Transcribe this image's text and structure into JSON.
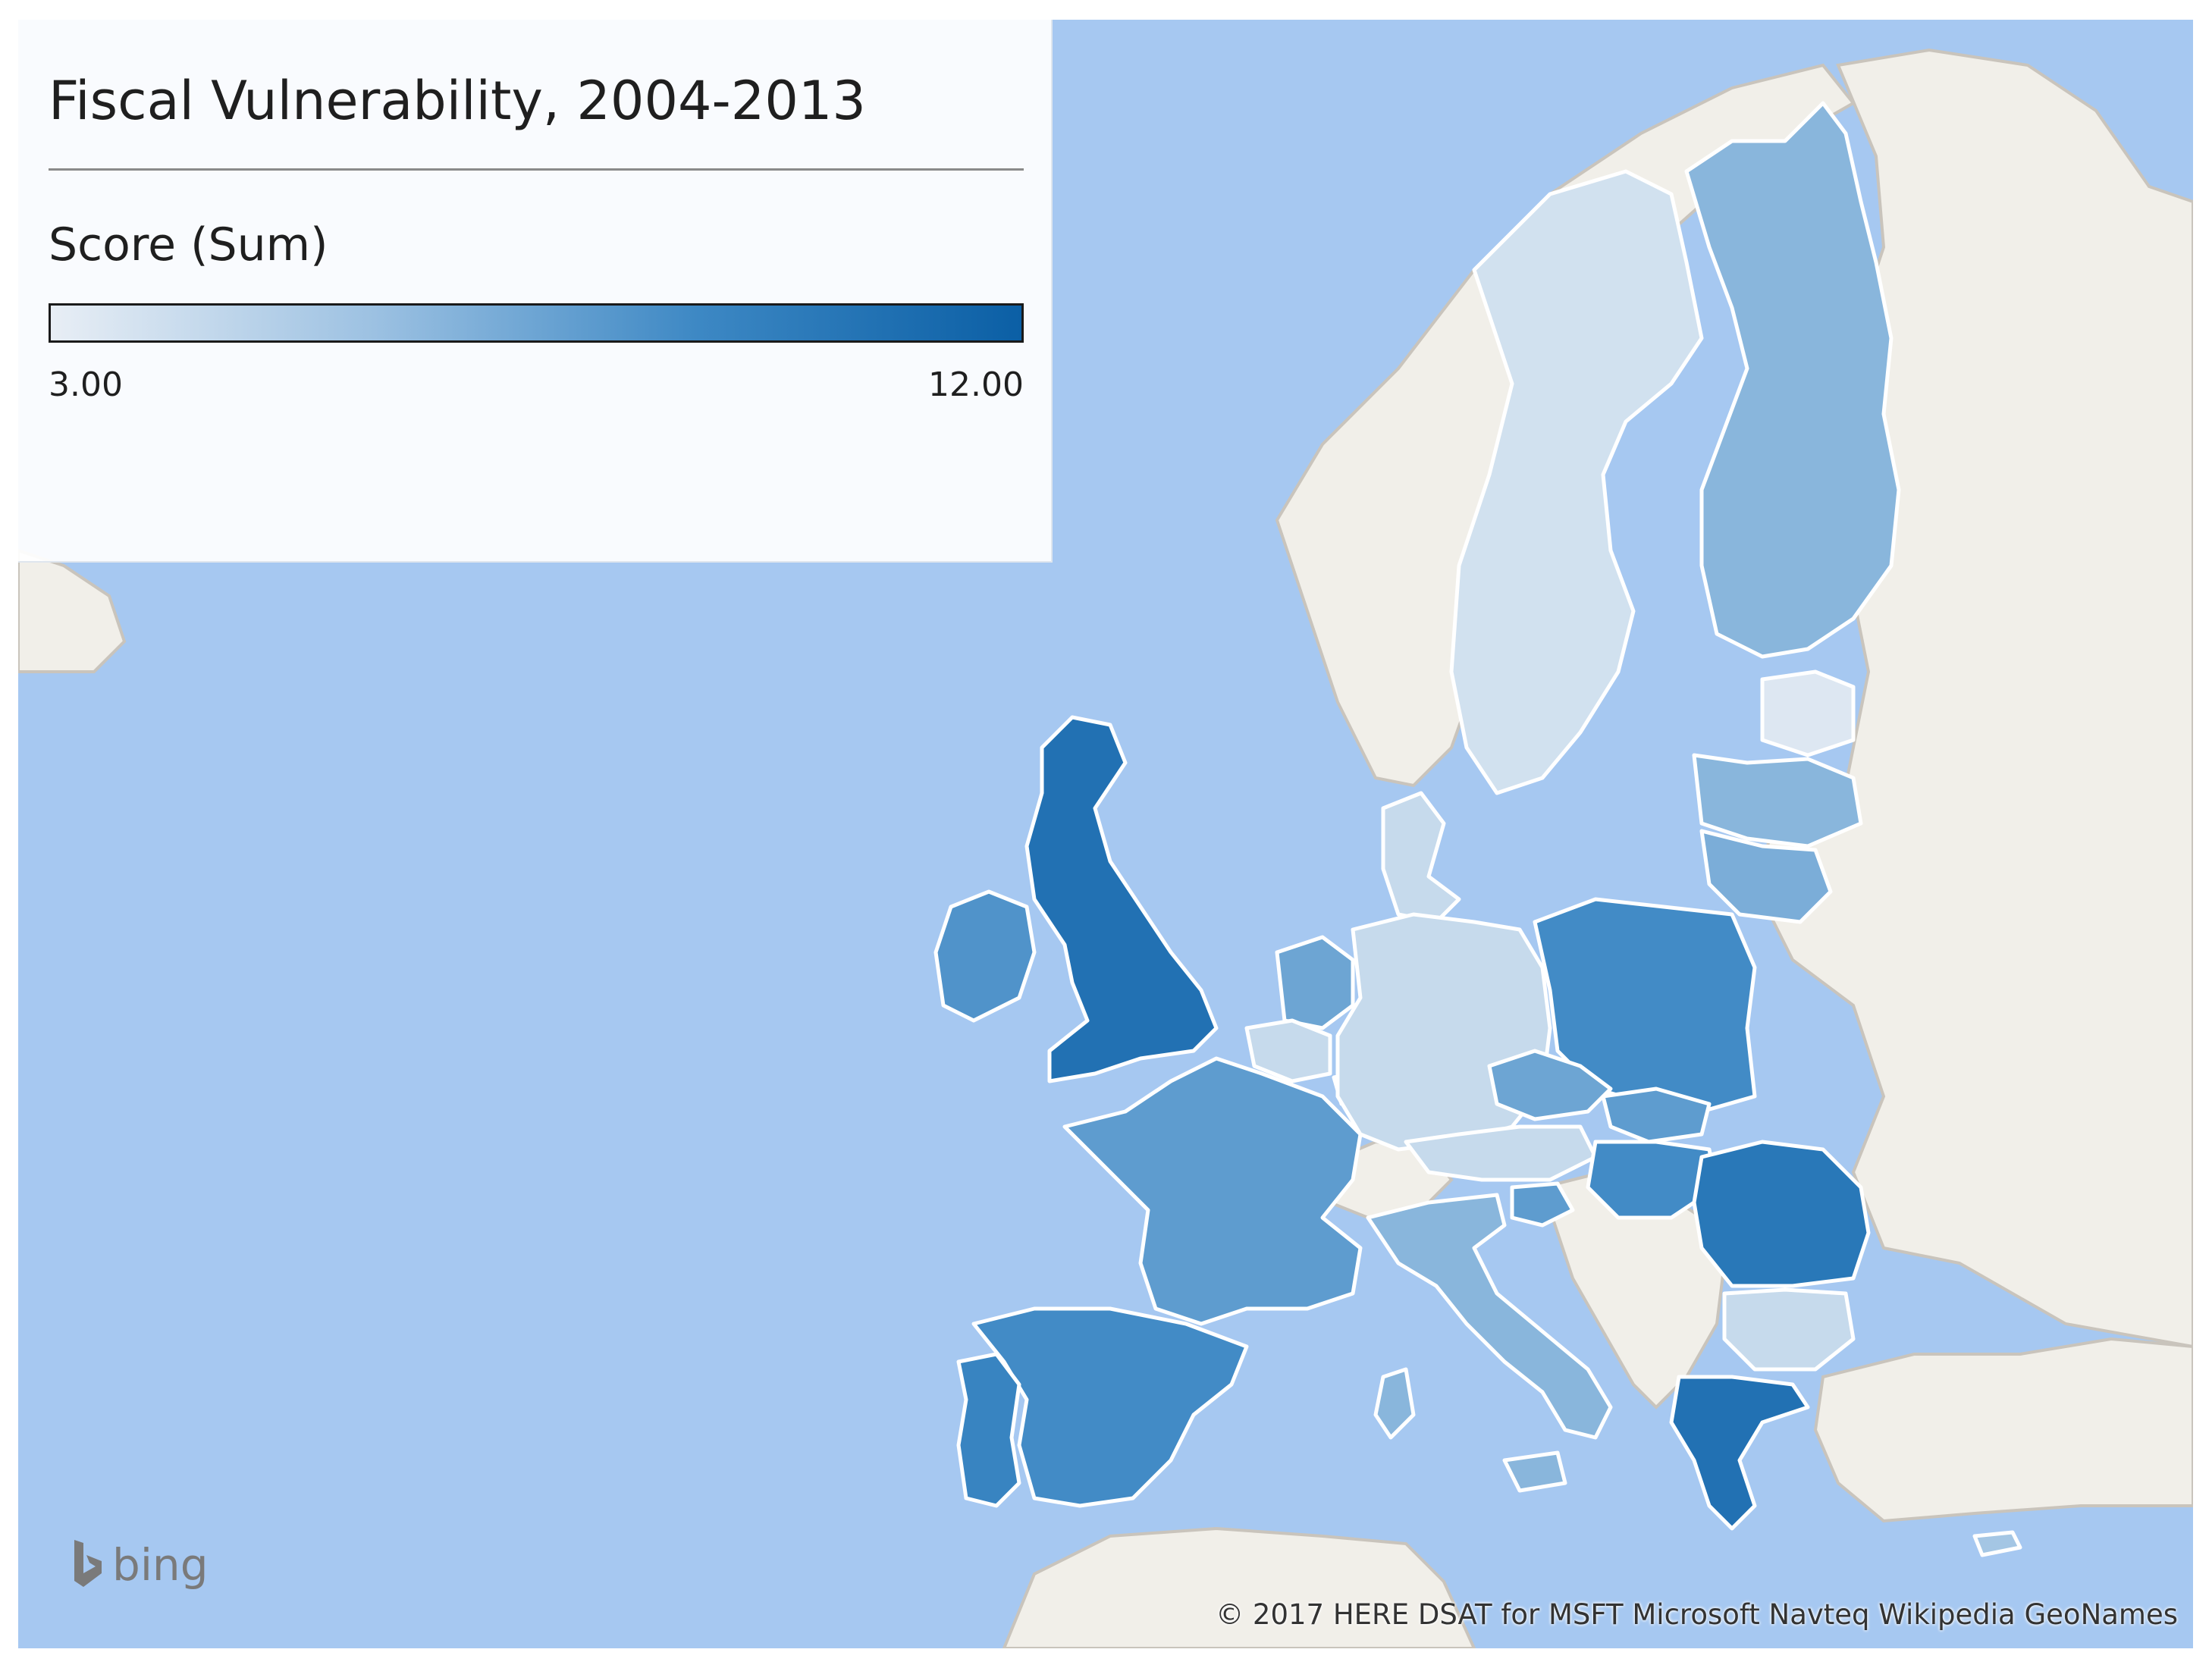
{
  "legend": {
    "title": "Fiscal Vulnerability, 2004-2013",
    "subtitle": "Score (Sum)",
    "min_label": "3.00",
    "max_label": "12.00",
    "color_low": "#e8eef5",
    "color_high": "#0b5fa5"
  },
  "colors": {
    "sea": "#a6c8f1",
    "land": "#f1efe9",
    "border": "#cfcac3"
  },
  "regions": [
    {
      "name": "Sweden",
      "level": 0.1
    },
    {
      "name": "Finland",
      "level": 0.4
    },
    {
      "name": "Norway",
      "level": -1
    },
    {
      "name": "Estonia",
      "level": 0.05
    },
    {
      "name": "Latvia",
      "level": 0.4
    },
    {
      "name": "Lithuania",
      "level": 0.45
    },
    {
      "name": "Denmark",
      "level": 0.15
    },
    {
      "name": "United Kingdom",
      "level": 0.85
    },
    {
      "name": "Ireland",
      "level": 0.6
    },
    {
      "name": "Netherlands",
      "level": 0.5
    },
    {
      "name": "Belgium",
      "level": 0.15
    },
    {
      "name": "Luxembourg",
      "level": 0.1
    },
    {
      "name": "Germany",
      "level": 0.15
    },
    {
      "name": "Poland",
      "level": 0.65
    },
    {
      "name": "Czech Republic",
      "level": 0.5
    },
    {
      "name": "Slovakia",
      "level": 0.55
    },
    {
      "name": "Austria",
      "level": 0.15
    },
    {
      "name": "Hungary",
      "level": 0.65
    },
    {
      "name": "Slovenia",
      "level": 0.55
    },
    {
      "name": "Romania",
      "level": 0.8
    },
    {
      "name": "Bulgaria",
      "level": 0.15
    },
    {
      "name": "Greece",
      "level": 0.85
    },
    {
      "name": "Italy",
      "level": 0.4
    },
    {
      "name": "France",
      "level": 0.55
    },
    {
      "name": "Spain",
      "level": 0.65
    },
    {
      "name": "Portugal",
      "level": 0.7
    },
    {
      "name": "Cyprus",
      "level": 0.3
    }
  ],
  "branding": {
    "logo_text": "bing",
    "attribution": "© 2017 HERE  DSAT for MSFT  Microsoft  Navteq  Wikipedia  GeoNames"
  }
}
